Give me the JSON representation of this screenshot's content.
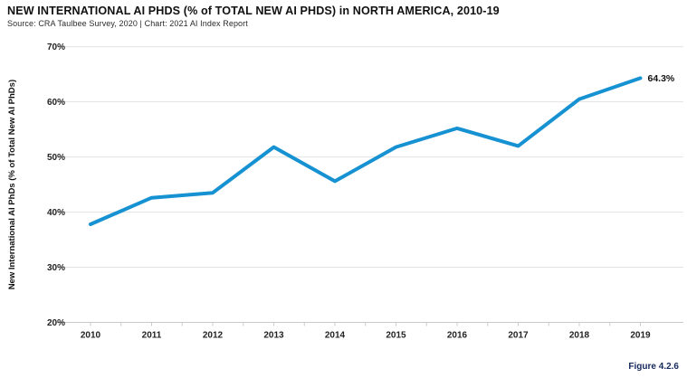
{
  "header": {
    "title": "NEW INTERNATIONAL AI PHDS (% of TOTAL NEW AI PHDS) in NORTH AMERICA, 2010-19",
    "source": "Source: CRA Taulbee Survey, 2020 | Chart: 2021 AI Index Report"
  },
  "footer": {
    "figure_label": "Figure 4.2.6"
  },
  "chart_data": {
    "type": "line",
    "title": "NEW INTERNATIONAL AI PHDS (% of TOTAL NEW AI PHDS) in NORTH AMERICA, 2010-19",
    "categories": [
      "2010",
      "2011",
      "2012",
      "2013",
      "2014",
      "2015",
      "2016",
      "2017",
      "2018",
      "2019"
    ],
    "values": [
      37.8,
      42.6,
      43.5,
      51.8,
      45.6,
      51.8,
      55.2,
      52.0,
      60.5,
      64.3
    ],
    "end_label": "64.3%",
    "xlabel": "",
    "ylabel": "New International AI PhDs (% of Total New AI PhDs)",
    "ylim": [
      20,
      70
    ],
    "ytick_labels": [
      "20%",
      "30%",
      "40%",
      "50%",
      "60%",
      "70%"
    ],
    "ytick_values": [
      20,
      30,
      40,
      50,
      60,
      70
    ],
    "grid": "horizontal",
    "legend": "none",
    "colors": {
      "line": "#1691D2",
      "grid": "#E2E2E2",
      "axis": "#CBCBCB",
      "tick_text": "#222222",
      "label_text": "#111111"
    }
  }
}
